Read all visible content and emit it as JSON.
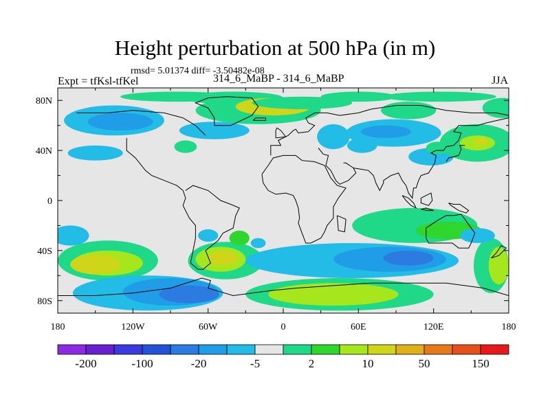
{
  "chart_data": {
    "type": "heatmap",
    "title": "Height perturbation at 500 hPa (in m)",
    "stats_line": "rmsd= 5.01374 diff= -3.50482e-08",
    "left_label": "Expt = tfKsl-tfKel",
    "center_label": "314_6_MaBP - 314_6_MaBP",
    "right_label": "JJA",
    "projection": "cylindrical equidistant, 180W–180E, 90S–90N",
    "xlim": [
      -180,
      180
    ],
    "ylim": [
      -90,
      90
    ],
    "x_ticks": [
      {
        "value": -180,
        "label": "180"
      },
      {
        "value": -120,
        "label": "120W"
      },
      {
        "value": -60,
        "label": "60W"
      },
      {
        "value": 0,
        "label": "0"
      },
      {
        "value": 60,
        "label": "60E"
      },
      {
        "value": 120,
        "label": "120E"
      },
      {
        "value": 180,
        "label": "180"
      }
    ],
    "y_ticks": [
      {
        "value": 80,
        "label": "80N"
      },
      {
        "value": 40,
        "label": "40N"
      },
      {
        "value": 0,
        "label": "0"
      },
      {
        "value": -40,
        "label": "40S"
      },
      {
        "value": -80,
        "label": "80S"
      }
    ],
    "colorbar": {
      "colors": [
        "#8a2be2",
        "#6a1fd0",
        "#3a3ae0",
        "#2452d6",
        "#2c7be0",
        "#1f9de6",
        "#22bce6",
        "#e6e6e6",
        "#1fd888",
        "#2ed62e",
        "#a6e61c",
        "#cfd61a",
        "#e0b01a",
        "#e67a1a",
        "#e6501a",
        "#e61a1a"
      ],
      "labels": [
        {
          "index": 1,
          "text": "-200"
        },
        {
          "index": 3,
          "text": "-100"
        },
        {
          "index": 5,
          "text": "-20"
        },
        {
          "index": 7,
          "text": "-5"
        },
        {
          "index": 9,
          "text": "2"
        },
        {
          "index": 11,
          "text": "10"
        },
        {
          "index": 13,
          "text": "50"
        },
        {
          "index": 15,
          "text": "150"
        }
      ]
    },
    "anomaly_regions": [
      {
        "lon": 175,
        "lat": 74,
        "rlon": 16,
        "rlat": 8,
        "level": 8
      },
      {
        "lon": 125,
        "lat": 83,
        "rlon": 45,
        "rlat": 4,
        "level": 8
      },
      {
        "lon": 100,
        "lat": 72,
        "rlon": 22,
        "rlat": 7,
        "level": 8
      },
      {
        "lon": -85,
        "lat": 83,
        "rlon": 45,
        "rlat": 4,
        "level": 8
      },
      {
        "lon": -40,
        "lat": 82,
        "rlon": 40,
        "rlat": 5,
        "level": 8
      },
      {
        "lon": -20,
        "lat": 72,
        "rlon": 50,
        "rlat": 11,
        "level": 8
      },
      {
        "lon": -8,
        "lat": 75,
        "rlon": 30,
        "rlat": 7,
        "level": 11
      },
      {
        "lon": 15,
        "lat": 78,
        "rlon": 40,
        "rlat": 5,
        "level": 8
      },
      {
        "lon": 60,
        "lat": 83,
        "rlon": 30,
        "rlat": 4,
        "level": 8
      },
      {
        "lon": -135,
        "lat": 64,
        "rlon": 40,
        "rlat": 12,
        "level": 6
      },
      {
        "lon": -130,
        "lat": 63,
        "rlon": 26,
        "rlat": 7,
        "level": 5
      },
      {
        "lon": -55,
        "lat": 56,
        "rlon": 28,
        "rlat": 7,
        "level": 6
      },
      {
        "lon": 88,
        "lat": 54,
        "rlon": 38,
        "rlat": 11,
        "level": 6
      },
      {
        "lon": 82,
        "lat": 55,
        "rlon": 20,
        "rlat": 5,
        "level": 5
      },
      {
        "lon": 63,
        "lat": 44,
        "rlon": 12,
        "rlat": 6,
        "level": 6
      },
      {
        "lon": 40,
        "lat": 51,
        "rlon": 13,
        "rlat": 10,
        "level": 6
      },
      {
        "lon": 118,
        "lat": 35,
        "rlon": 18,
        "rlat": 7,
        "level": 6
      },
      {
        "lon": -150,
        "lat": 38,
        "rlon": 22,
        "rlat": 6,
        "level": 6
      },
      {
        "lon": -78,
        "lat": 43,
        "rlon": 9,
        "rlat": 5,
        "level": 8
      },
      {
        "lon": 155,
        "lat": 46,
        "rlon": 30,
        "rlat": 15,
        "level": 8
      },
      {
        "lon": 155,
        "lat": 46,
        "rlon": 14,
        "rlat": 6,
        "level": 10
      },
      {
        "lon": 158,
        "lat": 47,
        "rlon": 5,
        "rlat": 3,
        "level": 11
      },
      {
        "lon": 123,
        "lat": 42,
        "rlon": 9,
        "rlat": 5,
        "level": 8
      },
      {
        "lon": -170,
        "lat": -28,
        "rlon": 15,
        "rlat": 8,
        "level": 6
      },
      {
        "lon": -140,
        "lat": -48,
        "rlon": 40,
        "rlat": 16,
        "level": 8
      },
      {
        "lon": -140,
        "lat": -50,
        "rlon": 28,
        "rlat": 10,
        "level": 10
      },
      {
        "lon": -150,
        "lat": -51,
        "rlon": 20,
        "rlat": 8,
        "level": 11
      },
      {
        "lon": -108,
        "lat": -74,
        "rlon": 60,
        "rlat": 14,
        "level": 6
      },
      {
        "lon": -90,
        "lat": -73,
        "rlon": 38,
        "rlat": 11,
        "level": 5
      },
      {
        "lon": -75,
        "lat": -75,
        "rlon": 24,
        "rlat": 7,
        "level": 4
      },
      {
        "lon": -46,
        "lat": -48,
        "rlon": 30,
        "rlat": 15,
        "level": 8
      },
      {
        "lon": -50,
        "lat": -47,
        "rlon": 20,
        "rlat": 10,
        "level": 10
      },
      {
        "lon": -48,
        "lat": -46,
        "rlon": 12,
        "rlat": 6,
        "level": 11
      },
      {
        "lon": -60,
        "lat": -28,
        "rlon": 8,
        "rlat": 5,
        "level": 6
      },
      {
        "lon": -35,
        "lat": -30,
        "rlon": 8,
        "rlat": 6,
        "level": 9
      },
      {
        "lon": -20,
        "lat": -34,
        "rlon": 6,
        "rlat": 4,
        "level": 6
      },
      {
        "lon": 55,
        "lat": -48,
        "rlon": 85,
        "rlat": 14,
        "level": 6
      },
      {
        "lon": 85,
        "lat": -47,
        "rlon": 45,
        "rlat": 10,
        "level": 5
      },
      {
        "lon": 100,
        "lat": -46,
        "rlon": 20,
        "rlat": 6,
        "level": 4
      },
      {
        "lon": 105,
        "lat": -20,
        "rlon": 50,
        "rlat": 14,
        "level": 8
      },
      {
        "lon": 132,
        "lat": -24,
        "rlon": 26,
        "rlat": 7,
        "level": 9
      },
      {
        "lon": 45,
        "lat": -75,
        "rlon": 75,
        "rlat": 13,
        "level": 8
      },
      {
        "lon": 40,
        "lat": -75,
        "rlon": 52,
        "rlat": 9,
        "level": 10
      },
      {
        "lon": 166,
        "lat": -52,
        "rlon": 14,
        "rlat": 22,
        "level": 8
      },
      {
        "lon": 172,
        "lat": -52,
        "rlon": 8,
        "rlat": 15,
        "level": 10
      },
      {
        "lon": 155,
        "lat": -28,
        "rlon": 14,
        "rlat": 6,
        "level": 6
      }
    ],
    "coastline_paths": [
      [
        [
          -180,
          -76
        ],
        [
          -150,
          -76
        ],
        [
          -120,
          -74
        ],
        [
          -90,
          -70
        ],
        [
          -65,
          -62
        ],
        [
          -58,
          -64
        ],
        [
          -60,
          -70
        ],
        [
          -40,
          -76
        ],
        [
          -10,
          -72
        ],
        [
          10,
          -70
        ],
        [
          40,
          -68
        ],
        [
          70,
          -66
        ],
        [
          100,
          -66
        ],
        [
          130,
          -66
        ],
        [
          160,
          -70
        ],
        [
          180,
          -76
        ]
      ],
      [
        [
          -165,
          70
        ],
        [
          -140,
          70
        ],
        [
          -120,
          72
        ],
        [
          -95,
          70
        ],
        [
          -80,
          66
        ],
        [
          -70,
          60
        ],
        [
          -62,
          52
        ]
      ],
      [
        [
          -125,
          50
        ],
        [
          -125,
          40
        ],
        [
          -118,
          34
        ],
        [
          -110,
          24
        ],
        [
          -105,
          20
        ],
        [
          -95,
          16
        ],
        [
          -85,
          12
        ],
        [
          -80,
          8
        ]
      ],
      [
        [
          -80,
          8
        ],
        [
          -78,
          2
        ],
        [
          -80,
          -4
        ],
        [
          -75,
          -14
        ],
        [
          -70,
          -20
        ],
        [
          -70,
          -30
        ],
        [
          -72,
          -40
        ],
        [
          -74,
          -50
        ],
        [
          -68,
          -55
        ],
        [
          -64,
          -55
        ],
        [
          -58,
          -50
        ],
        [
          -62,
          -40
        ],
        [
          -52,
          -32
        ],
        [
          -48,
          -26
        ],
        [
          -40,
          -22
        ],
        [
          -38,
          -12
        ],
        [
          -35,
          -6
        ],
        [
          -42,
          -3
        ],
        [
          -50,
          0
        ],
        [
          -60,
          8
        ],
        [
          -72,
          12
        ],
        [
          -78,
          8
        ]
      ],
      [
        [
          -17,
          21
        ],
        [
          -16,
          14
        ],
        [
          -12,
          8
        ],
        [
          -6,
          5
        ],
        [
          2,
          6
        ],
        [
          8,
          4
        ],
        [
          10,
          0
        ],
        [
          12,
          -6
        ],
        [
          13,
          -14
        ],
        [
          12,
          -18
        ],
        [
          15,
          -26
        ],
        [
          18,
          -34
        ],
        [
          22,
          -34
        ],
        [
          30,
          -30
        ],
        [
          33,
          -25
        ],
        [
          35,
          -20
        ],
        [
          40,
          -14
        ],
        [
          40,
          -5
        ],
        [
          44,
          2
        ],
        [
          50,
          10
        ],
        [
          43,
          12
        ],
        [
          38,
          18
        ],
        [
          33,
          28
        ],
        [
          25,
          31
        ],
        [
          15,
          32
        ],
        [
          10,
          36
        ],
        [
          0,
          36
        ],
        [
          -8,
          34
        ],
        [
          -12,
          28
        ],
        [
          -17,
          21
        ]
      ],
      [
        [
          -10,
          36
        ],
        [
          -10,
          44
        ],
        [
          -2,
          44
        ],
        [
          -4,
          48
        ],
        [
          4,
          52
        ],
        [
          8,
          56
        ],
        [
          10,
          57
        ],
        [
          12,
          54
        ],
        [
          20,
          55
        ],
        [
          25,
          60
        ],
        [
          20,
          62
        ],
        [
          18,
          66
        ],
        [
          25,
          70
        ],
        [
          35,
          70
        ],
        [
          45,
          68
        ],
        [
          60,
          70
        ],
        [
          70,
          73
        ],
        [
          90,
          76
        ],
        [
          110,
          76
        ],
        [
          130,
          72
        ],
        [
          150,
          70
        ],
        [
          170,
          70
        ],
        [
          180,
          68
        ]
      ],
      [
        [
          28,
          42
        ],
        [
          32,
          37
        ],
        [
          36,
          36
        ],
        [
          35,
          32
        ],
        [
          34,
          28
        ],
        [
          38,
          24
        ],
        [
          42,
          16
        ],
        [
          45,
          13
        ],
        [
          52,
          16
        ],
        [
          58,
          22
        ],
        [
          56,
          26
        ],
        [
          50,
          30
        ],
        [
          48,
          30
        ]
      ],
      [
        [
          56,
          26
        ],
        [
          62,
          25
        ],
        [
          68,
          24
        ],
        [
          72,
          20
        ],
        [
          74,
          14
        ],
        [
          77,
          8
        ],
        [
          80,
          14
        ],
        [
          80,
          16
        ],
        [
          86,
          20
        ],
        [
          92,
          22
        ],
        [
          95,
          16
        ],
        [
          98,
          12
        ],
        [
          100,
          6
        ],
        [
          103,
          2
        ],
        [
          104,
          10
        ],
        [
          106,
          10
        ],
        [
          108,
          16
        ],
        [
          110,
          20
        ],
        [
          116,
          22
        ],
        [
          121,
          30
        ],
        [
          122,
          36
        ],
        [
          118,
          38
        ],
        [
          122,
          40
        ],
        [
          128,
          40
        ],
        [
          130,
          43
        ],
        [
          136,
          44
        ],
        [
          140,
          48
        ],
        [
          142,
          54
        ],
        [
          136,
          55
        ],
        [
          140,
          60
        ],
        [
          155,
          60
        ],
        [
          162,
          62
        ],
        [
          175,
          65
        ],
        [
          180,
          66
        ]
      ],
      [
        [
          130,
          31
        ],
        [
          132,
          34
        ],
        [
          140,
          36
        ],
        [
          142,
          41
        ],
        [
          141,
          44
        ],
        [
          145,
          44
        ]
      ],
      [
        [
          114,
          -22
        ],
        [
          114,
          -30
        ],
        [
          116,
          -34
        ],
        [
          125,
          -34
        ],
        [
          135,
          -34
        ],
        [
          140,
          -38
        ],
        [
          148,
          -38
        ],
        [
          150,
          -34
        ],
        [
          153,
          -26
        ],
        [
          150,
          -22
        ],
        [
          145,
          -15
        ],
        [
          142,
          -11
        ],
        [
          136,
          -12
        ],
        [
          130,
          -12
        ],
        [
          123,
          -16
        ],
        [
          117,
          -20
        ],
        [
          114,
          -22
        ]
      ],
      [
        [
          95,
          4
        ],
        [
          100,
          2
        ],
        [
          104,
          -2
        ],
        [
          106,
          -6
        ],
        [
          102,
          -4
        ],
        [
          98,
          0
        ],
        [
          95,
          4
        ]
      ],
      [
        [
          110,
          -7
        ],
        [
          115,
          -8
        ],
        [
          120,
          -8
        ],
        [
          114,
          -6
        ],
        [
          110,
          -7
        ]
      ],
      [
        [
          110,
          2
        ],
        [
          114,
          4
        ],
        [
          118,
          6
        ],
        [
          119,
          0
        ],
        [
          116,
          -4
        ],
        [
          110,
          -2
        ],
        [
          110,
          2
        ]
      ],
      [
        [
          132,
          -2
        ],
        [
          136,
          -3
        ],
        [
          141,
          -3
        ],
        [
          148,
          -8
        ],
        [
          146,
          -10
        ],
        [
          140,
          -8
        ],
        [
          134,
          -4
        ],
        [
          132,
          -2
        ]
      ],
      [
        [
          -55,
          60
        ],
        [
          -42,
          60
        ],
        [
          -25,
          68
        ],
        [
          -20,
          75
        ],
        [
          -25,
          82
        ],
        [
          -45,
          83
        ],
        [
          -60,
          82
        ],
        [
          -70,
          78
        ],
        [
          -60,
          74
        ],
        [
          -55,
          66
        ],
        [
          -55,
          60
        ]
      ],
      [
        [
          -24,
          64
        ],
        [
          -14,
          64
        ],
        [
          -14,
          66
        ],
        [
          -22,
          66
        ],
        [
          -24,
          64
        ]
      ],
      [
        [
          -6,
          50
        ],
        [
          2,
          51
        ],
        [
          -2,
          56
        ],
        [
          -5,
          58
        ],
        [
          -6,
          56
        ],
        [
          -6,
          50
        ]
      ],
      [
        [
          166,
          -46
        ],
        [
          172,
          -44
        ],
        [
          178,
          -38
        ],
        [
          174,
          -36
        ],
        [
          170,
          -42
        ],
        [
          166,
          -46
        ]
      ],
      [
        [
          43,
          -12
        ],
        [
          50,
          -15
        ],
        [
          49,
          -25
        ],
        [
          44,
          -24
        ],
        [
          43,
          -12
        ]
      ]
    ]
  }
}
